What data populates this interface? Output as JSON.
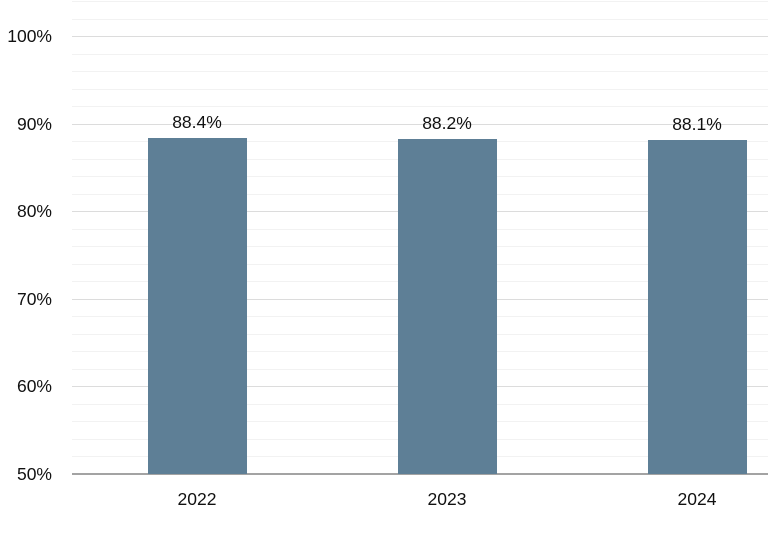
{
  "chart_data": {
    "type": "bar",
    "categories": [
      "2022",
      "2023",
      "2024"
    ],
    "values": [
      88.4,
      88.2,
      88.1
    ],
    "value_labels": [
      "88.4%",
      "88.2%",
      "88.1%"
    ],
    "title": "",
    "xlabel": "",
    "ylabel": "",
    "ylim": [
      50,
      100
    ],
    "y_major_step": 10,
    "y_minor_step": 2,
    "y_tick_labels": [
      "50%",
      "60%",
      "70%",
      "80%",
      "90%",
      "100%"
    ],
    "grid": "horizontal major and minor, on",
    "legend": "none",
    "colors": {
      "bar": "#5e7f96",
      "minor_gridline": "#f2f2f2",
      "major_gridline": "#dcdcdc",
      "axis_line": "#a3a3a3",
      "text": "#111111",
      "background": "#ffffff"
    }
  }
}
